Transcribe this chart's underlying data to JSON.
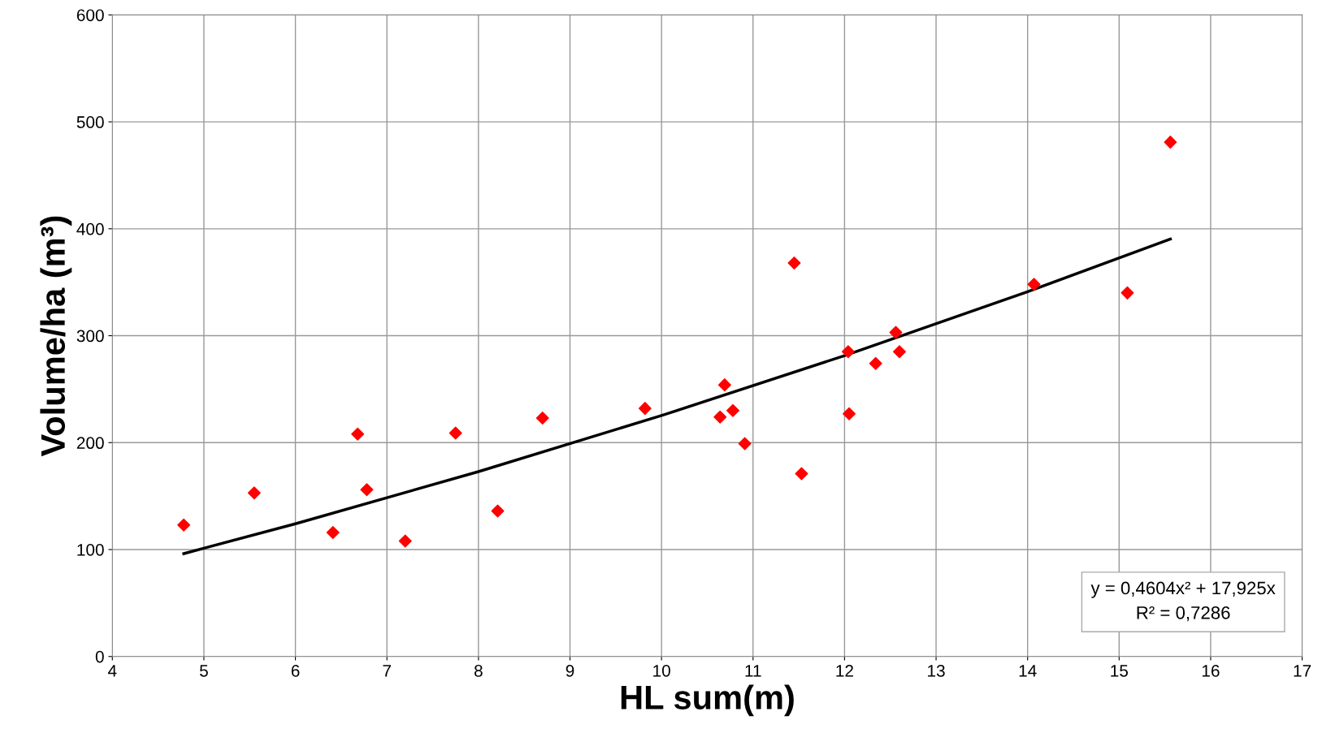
{
  "chart_data": {
    "type": "scatter",
    "xlabel": "HL sum(m)",
    "ylabel": "Volume/ha (m³)",
    "xlim": [
      4,
      17
    ],
    "xticks": [
      4,
      5,
      6,
      7,
      8,
      9,
      10,
      11,
      12,
      13,
      14,
      15,
      16,
      17
    ],
    "ylim": [
      0,
      600
    ],
    "yticks": [
      0,
      100,
      200,
      300,
      400,
      500,
      600
    ],
    "grid": true,
    "legend": false,
    "series": [
      {
        "marker": "diamond",
        "color": "#ff0000",
        "x": [
          4.78,
          5.55,
          6.41,
          6.68,
          6.78,
          7.2,
          7.75,
          8.21,
          8.7,
          9.82,
          10.64,
          10.69,
          10.78,
          10.91,
          11.45,
          11.53,
          12.04,
          12.05,
          12.34,
          12.56,
          12.6,
          14.07,
          15.09,
          15.56
        ],
        "values": [
          123,
          153,
          116,
          208,
          156,
          108,
          209,
          136,
          223,
          232,
          224,
          254,
          230,
          199,
          368,
          171,
          285,
          227,
          274,
          303,
          285,
          348,
          340,
          481
        ]
      },
      {
        "type": "line",
        "marker": "none",
        "line_style": "solid",
        "color": "#000000",
        "x": [
          4.78,
          6,
          8,
          10,
          12,
          14,
          15.56
        ],
        "values": [
          96.2,
          124.1,
          172.9,
          225.3,
          281.4,
          341.2,
          390.4
        ]
      }
    ],
    "annotations": [
      "y = 0,4604x² + 17,925x\nR² = 0,7286"
    ]
  }
}
